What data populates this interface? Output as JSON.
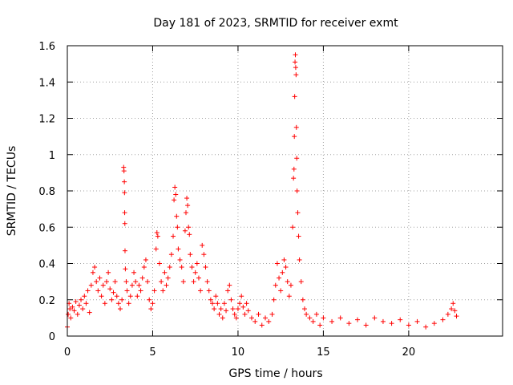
{
  "chart_data": {
    "type": "scatter",
    "title": "Day 181 of 2023, SRMTID for receiver exmt",
    "xlabel": "GPS time / hours",
    "ylabel": "SRMTID / TECUs",
    "xlim": [
      0,
      25.5
    ],
    "ylim": [
      0,
      1.6
    ],
    "xticks": [
      0,
      5,
      10,
      15,
      20
    ],
    "xtick_labels": [
      "0",
      "5",
      "10",
      "15",
      "20"
    ],
    "yticks": [
      0,
      0.2,
      0.4,
      0.6,
      0.8,
      1.0,
      1.2,
      1.4,
      1.6
    ],
    "ytick_labels": [
      "0",
      "0.2",
      "0.4",
      "0.6",
      "0.8",
      "1",
      "1.2",
      "1.4",
      "1.6"
    ],
    "grid": true,
    "marker": "+",
    "series": [
      {
        "name": "SRMTID",
        "color": "#ff0000",
        "points": [
          [
            0.0,
            0.05
          ],
          [
            0.05,
            0.12
          ],
          [
            0.1,
            0.18
          ],
          [
            0.15,
            0.15
          ],
          [
            0.2,
            0.1
          ],
          [
            0.3,
            0.16
          ],
          [
            0.4,
            0.14
          ],
          [
            0.5,
            0.19
          ],
          [
            0.6,
            0.12
          ],
          [
            0.7,
            0.17
          ],
          [
            0.8,
            0.2
          ],
          [
            0.9,
            0.15
          ],
          [
            1.0,
            0.22
          ],
          [
            1.1,
            0.18
          ],
          [
            1.2,
            0.25
          ],
          [
            1.3,
            0.13
          ],
          [
            1.4,
            0.28
          ],
          [
            1.5,
            0.35
          ],
          [
            1.6,
            0.38
          ],
          [
            1.7,
            0.3
          ],
          [
            1.8,
            0.25
          ],
          [
            1.9,
            0.32
          ],
          [
            2.0,
            0.22
          ],
          [
            2.1,
            0.28
          ],
          [
            2.2,
            0.18
          ],
          [
            2.3,
            0.3
          ],
          [
            2.4,
            0.35
          ],
          [
            2.5,
            0.26
          ],
          [
            2.6,
            0.2
          ],
          [
            2.7,
            0.24
          ],
          [
            2.8,
            0.3
          ],
          [
            2.9,
            0.22
          ],
          [
            3.0,
            0.18
          ],
          [
            3.1,
            0.15
          ],
          [
            3.2,
            0.2
          ],
          [
            3.3,
            0.93
          ],
          [
            3.32,
            0.91
          ],
          [
            3.34,
            0.85
          ],
          [
            3.35,
            0.79
          ],
          [
            3.36,
            0.68
          ],
          [
            3.37,
            0.62
          ],
          [
            3.38,
            0.47
          ],
          [
            3.4,
            0.37
          ],
          [
            3.45,
            0.3
          ],
          [
            3.5,
            0.25
          ],
          [
            3.6,
            0.18
          ],
          [
            3.7,
            0.22
          ],
          [
            3.8,
            0.28
          ],
          [
            3.9,
            0.35
          ],
          [
            4.0,
            0.3
          ],
          [
            4.1,
            0.22
          ],
          [
            4.2,
            0.28
          ],
          [
            4.3,
            0.25
          ],
          [
            4.4,
            0.32
          ],
          [
            4.5,
            0.38
          ],
          [
            4.6,
            0.42
          ],
          [
            4.7,
            0.3
          ],
          [
            4.8,
            0.2
          ],
          [
            4.9,
            0.15
          ],
          [
            5.0,
            0.18
          ],
          [
            5.1,
            0.25
          ],
          [
            5.2,
            0.48
          ],
          [
            5.25,
            0.57
          ],
          [
            5.3,
            0.55
          ],
          [
            5.4,
            0.4
          ],
          [
            5.5,
            0.3
          ],
          [
            5.6,
            0.25
          ],
          [
            5.7,
            0.35
          ],
          [
            5.8,
            0.28
          ],
          [
            5.9,
            0.32
          ],
          [
            6.0,
            0.38
          ],
          [
            6.1,
            0.45
          ],
          [
            6.2,
            0.55
          ],
          [
            6.25,
            0.75
          ],
          [
            6.3,
            0.82
          ],
          [
            6.35,
            0.78
          ],
          [
            6.4,
            0.66
          ],
          [
            6.45,
            0.6
          ],
          [
            6.5,
            0.48
          ],
          [
            6.6,
            0.42
          ],
          [
            6.7,
            0.38
          ],
          [
            6.8,
            0.3
          ],
          [
            6.9,
            0.58
          ],
          [
            6.95,
            0.68
          ],
          [
            7.0,
            0.76
          ],
          [
            7.05,
            0.72
          ],
          [
            7.1,
            0.6
          ],
          [
            7.15,
            0.56
          ],
          [
            7.2,
            0.45
          ],
          [
            7.3,
            0.38
          ],
          [
            7.4,
            0.3
          ],
          [
            7.5,
            0.35
          ],
          [
            7.6,
            0.4
          ],
          [
            7.7,
            0.32
          ],
          [
            7.8,
            0.25
          ],
          [
            7.9,
            0.5
          ],
          [
            8.0,
            0.45
          ],
          [
            8.1,
            0.38
          ],
          [
            8.2,
            0.3
          ],
          [
            8.3,
            0.25
          ],
          [
            8.4,
            0.2
          ],
          [
            8.5,
            0.18
          ],
          [
            8.6,
            0.15
          ],
          [
            8.7,
            0.22
          ],
          [
            8.8,
            0.18
          ],
          [
            8.9,
            0.12
          ],
          [
            9.0,
            0.15
          ],
          [
            9.1,
            0.1
          ],
          [
            9.2,
            0.18
          ],
          [
            9.3,
            0.14
          ],
          [
            9.4,
            0.25
          ],
          [
            9.5,
            0.28
          ],
          [
            9.6,
            0.2
          ],
          [
            9.7,
            0.15
          ],
          [
            9.8,
            0.12
          ],
          [
            9.9,
            0.1
          ],
          [
            10.0,
            0.15
          ],
          [
            10.1,
            0.18
          ],
          [
            10.2,
            0.22
          ],
          [
            10.3,
            0.16
          ],
          [
            10.4,
            0.12
          ],
          [
            10.5,
            0.18
          ],
          [
            10.6,
            0.14
          ],
          [
            10.8,
            0.1
          ],
          [
            11.0,
            0.08
          ],
          [
            11.2,
            0.12
          ],
          [
            11.4,
            0.06
          ],
          [
            11.6,
            0.1
          ],
          [
            11.8,
            0.08
          ],
          [
            12.0,
            0.12
          ],
          [
            12.1,
            0.2
          ],
          [
            12.2,
            0.28
          ],
          [
            12.3,
            0.4
          ],
          [
            12.4,
            0.32
          ],
          [
            12.5,
            0.25
          ],
          [
            12.6,
            0.35
          ],
          [
            12.7,
            0.42
          ],
          [
            12.8,
            0.38
          ],
          [
            12.9,
            0.3
          ],
          [
            13.0,
            0.22
          ],
          [
            13.1,
            0.28
          ],
          [
            13.2,
            0.6
          ],
          [
            13.25,
            0.87
          ],
          [
            13.28,
            0.92
          ],
          [
            13.3,
            1.1
          ],
          [
            13.32,
            1.32
          ],
          [
            13.34,
            1.51
          ],
          [
            13.36,
            1.55
          ],
          [
            13.38,
            1.48
          ],
          [
            13.4,
            1.44
          ],
          [
            13.42,
            1.15
          ],
          [
            13.44,
            0.98
          ],
          [
            13.46,
            0.8
          ],
          [
            13.5,
            0.68
          ],
          [
            13.55,
            0.55
          ],
          [
            13.6,
            0.42
          ],
          [
            13.7,
            0.3
          ],
          [
            13.8,
            0.2
          ],
          [
            13.9,
            0.15
          ],
          [
            14.0,
            0.12
          ],
          [
            14.2,
            0.1
          ],
          [
            14.4,
            0.08
          ],
          [
            14.6,
            0.12
          ],
          [
            14.8,
            0.06
          ],
          [
            15.0,
            0.1
          ],
          [
            15.5,
            0.08
          ],
          [
            16.0,
            0.1
          ],
          [
            16.5,
            0.07
          ],
          [
            17.0,
            0.09
          ],
          [
            17.5,
            0.06
          ],
          [
            18.0,
            0.1
          ],
          [
            18.5,
            0.08
          ],
          [
            19.0,
            0.07
          ],
          [
            19.5,
            0.09
          ],
          [
            20.0,
            0.06
          ],
          [
            20.5,
            0.08
          ],
          [
            21.0,
            0.05
          ],
          [
            21.5,
            0.07
          ],
          [
            22.0,
            0.09
          ],
          [
            22.3,
            0.12
          ],
          [
            22.5,
            0.15
          ],
          [
            22.6,
            0.18
          ],
          [
            22.7,
            0.14
          ],
          [
            22.8,
            0.11
          ]
        ]
      }
    ]
  }
}
